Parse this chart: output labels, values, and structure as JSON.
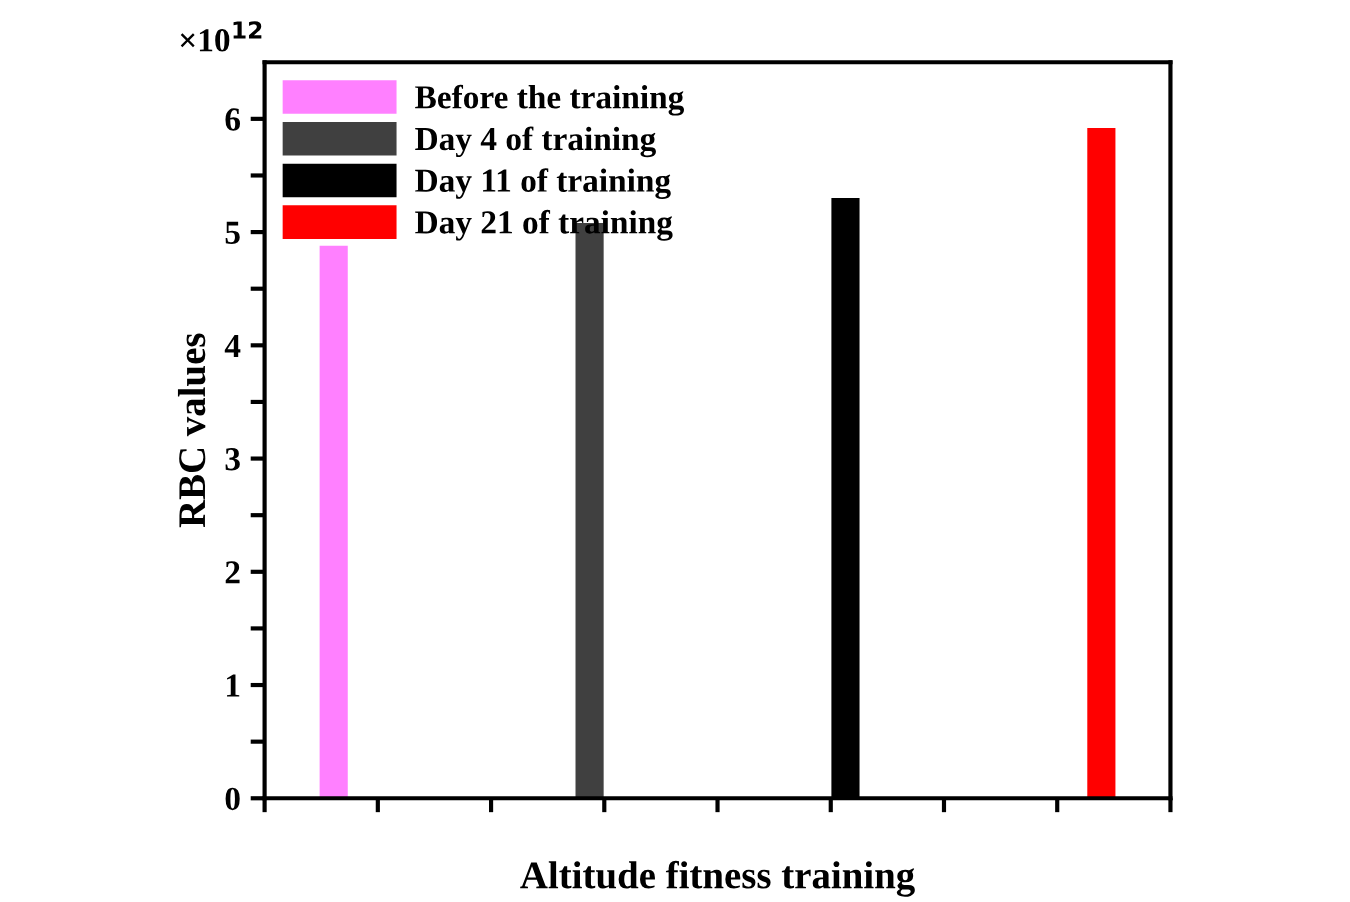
{
  "chart_data": {
    "type": "bar",
    "xlabel": "Altitude fitness training",
    "ylabel": "RBC values",
    "annotations": [
      "×10$^{12}$"
    ],
    "categories": [
      null,
      null,
      null,
      null
    ],
    "series": [
      {
        "name": "Before the training",
        "color": "#ff80ff",
        "values": [
          4.88,
          null,
          null,
          null
        ]
      },
      {
        "name": "Day 4 of training",
        "color": "#404040",
        "values": [
          null,
          5.08,
          null,
          null
        ]
      },
      {
        "name": "Day 11 of training",
        "color": "#000000",
        "values": [
          null,
          null,
          5.3,
          null
        ]
      },
      {
        "name": "Day 21 of training",
        "color": "#ff0000",
        "values": [
          null,
          null,
          null,
          5.92
        ]
      }
    ],
    "ylim": [
      0,
      6.5
    ],
    "yticks": [
      0,
      {
        "value": 0.5,
        "label": null
      },
      1,
      {
        "value": 1.5,
        "label": null
      },
      2,
      {
        "value": 2.5,
        "label": null
      },
      3,
      {
        "value": 3.5,
        "label": null
      },
      4,
      {
        "value": 4.5,
        "label": null
      },
      5,
      {
        "value": 5.5,
        "label": null
      },
      6
    ],
    "grid": false,
    "legend": "top left"
  }
}
